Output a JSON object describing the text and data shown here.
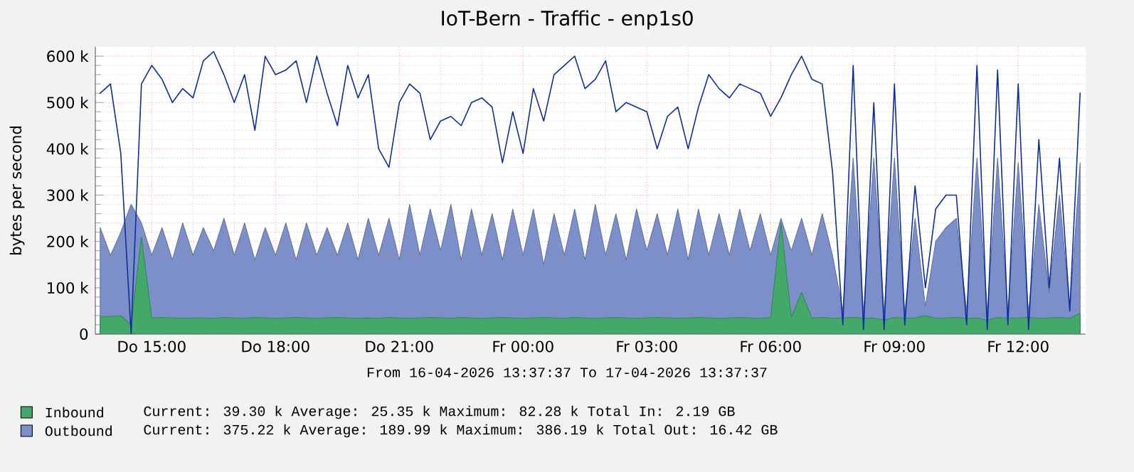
{
  "chart_data": {
    "type": "area",
    "title": "IoT-Bern - Traffic - enp1s0",
    "ylabel": "bytes per second",
    "xlim": [
      "2026-04-16T13:38",
      "2026-04-17T13:38"
    ],
    "xticks": [
      {
        "value": "2026-04-16T15:00",
        "label": "Do 15:00"
      },
      {
        "value": "2026-04-16T18:00",
        "label": "Do 18:00"
      },
      {
        "value": "2026-04-16T21:00",
        "label": "Do 21:00"
      },
      {
        "value": "2026-04-17T00:00",
        "label": "Fr 00:00"
      },
      {
        "value": "2026-04-17T03:00",
        "label": "Fr 03:00"
      },
      {
        "value": "2026-04-17T06:00",
        "label": "Fr 06:00"
      },
      {
        "value": "2026-04-17T09:00",
        "label": "Fr 09:00"
      },
      {
        "value": "2026-04-17T12:00",
        "label": "Fr 12:00"
      }
    ],
    "ylim": [
      0,
      620000
    ],
    "yticks": [
      {
        "value": 0,
        "label": "0"
      },
      {
        "value": 100000,
        "label": "100 k"
      },
      {
        "value": 200000,
        "label": "200 k"
      },
      {
        "value": 300000,
        "label": "300 k"
      },
      {
        "value": 400000,
        "label": "400 k"
      },
      {
        "value": 500000,
        "label": "500 k"
      },
      {
        "value": 600000,
        "label": "600 k"
      }
    ],
    "grid": true,
    "legend": "bottom",
    "annotations": [
      "From 16-04-2026 13:37:37 To 17-04-2026 13:37:37",
      "Current:   39.30 k  Average:   25.35 k  Maximum:   82.28 k  Total In:     2.19 GB",
      "Current:  375.22 k  Average:  189.99 k  Maximum:  386.19 k  Total Out:   16.42 GB"
    ],
    "x": [
      "2026-04-16T13:45",
      "2026-04-16T14:00",
      "2026-04-16T14:15",
      "2026-04-16T14:30",
      "2026-04-16T14:45",
      "2026-04-16T15:00",
      "2026-04-16T15:15",
      "2026-04-16T15:30",
      "2026-04-16T15:45",
      "2026-04-16T16:00",
      "2026-04-16T16:15",
      "2026-04-16T16:30",
      "2026-04-16T16:45",
      "2026-04-16T17:00",
      "2026-04-16T17:15",
      "2026-04-16T17:30",
      "2026-04-16T17:45",
      "2026-04-16T18:00",
      "2026-04-16T18:15",
      "2026-04-16T18:30",
      "2026-04-16T18:45",
      "2026-04-16T19:00",
      "2026-04-16T19:15",
      "2026-04-16T19:30",
      "2026-04-16T19:45",
      "2026-04-16T20:00",
      "2026-04-16T20:15",
      "2026-04-16T20:30",
      "2026-04-16T20:45",
      "2026-04-16T21:00",
      "2026-04-16T21:15",
      "2026-04-16T21:30",
      "2026-04-16T21:45",
      "2026-04-16T22:00",
      "2026-04-16T22:15",
      "2026-04-16T22:30",
      "2026-04-16T22:45",
      "2026-04-16T23:00",
      "2026-04-16T23:15",
      "2026-04-16T23:30",
      "2026-04-16T23:45",
      "2026-04-17T00:00",
      "2026-04-17T00:15",
      "2026-04-17T00:30",
      "2026-04-17T00:45",
      "2026-04-17T01:00",
      "2026-04-17T01:15",
      "2026-04-17T01:30",
      "2026-04-17T01:45",
      "2026-04-17T02:00",
      "2026-04-17T02:15",
      "2026-04-17T02:30",
      "2026-04-17T02:45",
      "2026-04-17T03:00",
      "2026-04-17T03:15",
      "2026-04-17T03:30",
      "2026-04-17T03:45",
      "2026-04-17T04:00",
      "2026-04-17T04:15",
      "2026-04-17T04:30",
      "2026-04-17T04:45",
      "2026-04-17T05:00",
      "2026-04-17T05:15",
      "2026-04-17T05:30",
      "2026-04-17T05:45",
      "2026-04-17T06:00",
      "2026-04-17T06:15",
      "2026-04-17T06:30",
      "2026-04-17T06:45",
      "2026-04-17T07:00",
      "2026-04-17T07:15",
      "2026-04-17T07:30",
      "2026-04-17T07:45",
      "2026-04-17T08:00",
      "2026-04-17T08:15",
      "2026-04-17T08:30",
      "2026-04-17T08:45",
      "2026-04-17T09:00",
      "2026-04-17T09:15",
      "2026-04-17T09:30",
      "2026-04-17T09:45",
      "2026-04-17T10:00",
      "2026-04-17T10:15",
      "2026-04-17T10:30",
      "2026-04-17T10:45",
      "2026-04-17T11:00",
      "2026-04-17T11:15",
      "2026-04-17T11:30",
      "2026-04-17T11:45",
      "2026-04-17T12:00",
      "2026-04-17T12:15",
      "2026-04-17T12:30",
      "2026-04-17T12:45",
      "2026-04-17T13:00",
      "2026-04-17T13:15",
      "2026-04-17T13:30"
    ],
    "series": [
      {
        "name": "Inbound",
        "color": "#44a86a",
        "values": [
          38000,
          38000,
          40000,
          20000,
          210000,
          35000,
          36000,
          35000,
          34000,
          35000,
          35000,
          34000,
          36000,
          35000,
          34000,
          36000,
          35000,
          34000,
          35000,
          36000,
          35000,
          34000,
          35000,
          36000,
          35000,
          34000,
          35000,
          34000,
          36000,
          35000,
          34000,
          35000,
          36000,
          35000,
          34000,
          36000,
          35000,
          34000,
          35000,
          36000,
          35000,
          34000,
          35000,
          36000,
          35000,
          34000,
          36000,
          35000,
          34000,
          35000,
          36000,
          35000,
          34000,
          35000,
          36000,
          35000,
          34000,
          35000,
          36000,
          35000,
          34000,
          35000,
          36000,
          35000,
          34000,
          36000,
          240000,
          36000,
          90000,
          35000,
          36000,
          34000,
          35000,
          36000,
          34000,
          35000,
          30000,
          36000,
          34000,
          35000,
          40000,
          34000,
          35000,
          36000,
          34000,
          35000,
          30000,
          36000,
          34000,
          35000,
          36000,
          34000,
          35000,
          36000,
          34000,
          45000
        ]
      },
      {
        "name": "Outbound",
        "color": "#7d8fc8",
        "values": [
          230000,
          170000,
          220000,
          280000,
          240000,
          170000,
          230000,
          160000,
          240000,
          170000,
          230000,
          180000,
          250000,
          170000,
          240000,
          160000,
          230000,
          170000,
          240000,
          160000,
          240000,
          170000,
          230000,
          170000,
          240000,
          160000,
          250000,
          170000,
          250000,
          160000,
          280000,
          170000,
          270000,
          180000,
          280000,
          160000,
          270000,
          170000,
          260000,
          160000,
          270000,
          170000,
          270000,
          150000,
          260000,
          170000,
          270000,
          160000,
          280000,
          170000,
          260000,
          160000,
          270000,
          180000,
          260000,
          170000,
          270000,
          160000,
          270000,
          170000,
          260000,
          170000,
          270000,
          180000,
          260000,
          170000,
          250000,
          180000,
          250000,
          170000,
          260000,
          170000,
          50000,
          380000,
          45000,
          380000,
          45000,
          380000,
          45000,
          250000,
          60000,
          200000,
          230000,
          250000,
          50000,
          380000,
          45000,
          380000,
          45000,
          370000,
          45000,
          280000,
          90000,
          300000,
          50000,
          370000
        ]
      },
      {
        "type": "line",
        "color": "#0d2e9e",
        "values": [
          520000,
          540000,
          390000,
          0,
          540000,
          580000,
          550000,
          500000,
          530000,
          510000,
          590000,
          610000,
          560000,
          500000,
          560000,
          440000,
          600000,
          560000,
          570000,
          590000,
          500000,
          600000,
          520000,
          450000,
          580000,
          510000,
          560000,
          400000,
          360000,
          500000,
          540000,
          520000,
          420000,
          460000,
          470000,
          450000,
          500000,
          510000,
          490000,
          370000,
          480000,
          390000,
          530000,
          460000,
          560000,
          580000,
          600000,
          530000,
          550000,
          590000,
          480000,
          500000,
          490000,
          480000,
          400000,
          470000,
          490000,
          400000,
          490000,
          560000,
          530000,
          510000,
          540000,
          530000,
          520000,
          470000,
          510000,
          560000,
          600000,
          550000,
          540000,
          350000,
          20000,
          580000,
          10000,
          500000,
          10000,
          540000,
          20000,
          320000,
          100000,
          270000,
          300000,
          300000,
          20000,
          580000,
          10000,
          570000,
          20000,
          540000,
          10000,
          420000,
          100000,
          380000,
          50000,
          520000
        ]
      }
    ]
  }
}
